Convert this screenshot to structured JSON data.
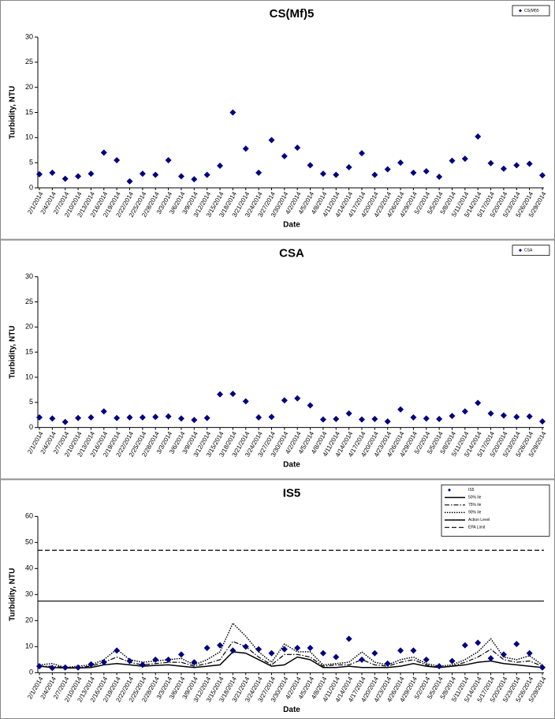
{
  "chart_data": [
    {
      "type": "scatter",
      "title": "CS(Mf)5",
      "xlabel": "Date",
      "ylabel": "Turbidity, NTU",
      "legend": "upper right",
      "categories": [
        "2/1/2014",
        "2/4/2014",
        "2/7/2014",
        "2/10/2014",
        "2/13/2014",
        "2/16/2014",
        "2/19/2014",
        "2/22/2014",
        "2/25/2014",
        "2/28/2014",
        "3/3/2014",
        "3/6/2014",
        "3/9/2014",
        "3/12/2014",
        "3/15/2014",
        "3/18/2014",
        "3/21/2014",
        "3/24/2014",
        "3/27/2014",
        "3/30/2014",
        "4/2/2014",
        "4/5/2014",
        "4/8/2014",
        "4/11/2014",
        "4/14/2014",
        "4/17/2014",
        "4/20/2014",
        "4/23/2014",
        "4/26/2014",
        "4/29/2014",
        "5/2/2014",
        "5/5/2014",
        "5/8/2014",
        "5/11/2014",
        "5/14/2014",
        "5/17/2014",
        "5/20/2014",
        "5/23/2014",
        "5/26/2014",
        "5/29/2014"
      ],
      "ylim": [
        0,
        30
      ],
      "yticks": [
        0,
        5,
        10,
        15,
        20,
        25,
        30
      ],
      "series": [
        {
          "name": "CS(Mf)5",
          "color": "#000080",
          "style": "marker",
          "values": [
            2.7,
            3.0,
            1.8,
            2.3,
            2.8,
            7.0,
            5.5,
            1.3,
            2.8,
            2.6,
            5.5,
            2.3,
            1.7,
            2.6,
            4.4,
            15,
            7.8,
            3,
            9.5,
            6.3,
            8,
            4.5,
            2.8,
            2.6,
            4.1,
            6.9,
            2.6,
            3.7,
            5,
            3,
            3.3,
            2.2,
            5.4,
            5.8,
            10.2,
            4.9,
            3.8,
            4.5,
            4.8,
            2.5
          ]
        }
      ]
    },
    {
      "type": "scatter",
      "title": "CSA",
      "xlabel": "Date",
      "ylabel": "Turbidity, NTU",
      "legend": "upper right",
      "categories": [
        "2/1/2014",
        "2/4/2014",
        "2/7/2014",
        "2/10/2014",
        "2/13/2014",
        "2/16/2014",
        "2/19/2014",
        "2/22/2014",
        "2/25/2014",
        "2/28/2014",
        "3/3/2014",
        "3/6/2014",
        "3/9/2014",
        "3/12/2014",
        "3/15/2014",
        "3/18/2014",
        "3/21/2014",
        "3/24/2014",
        "3/27/2014",
        "3/30/2014",
        "4/2/2014",
        "4/5/2014",
        "4/8/2014",
        "4/11/2014",
        "4/14/2014",
        "4/17/2014",
        "4/20/2014",
        "4/23/2014",
        "4/26/2014",
        "4/29/2014",
        "5/2/2014",
        "5/5/2014",
        "5/8/2014",
        "5/11/2014",
        "5/14/2014",
        "5/17/2014",
        "5/20/2014",
        "5/23/2014",
        "5/26/2014",
        "5/29/2014"
      ],
      "ylim": [
        0,
        30
      ],
      "yticks": [
        0,
        5,
        10,
        15,
        20,
        25,
        30
      ],
      "series": [
        {
          "name": "CSA",
          "color": "#000080",
          "style": "marker",
          "values": [
            2.0,
            1.8,
            1.1,
            1.9,
            2.0,
            3.2,
            1.9,
            2.0,
            2.0,
            2.1,
            2.2,
            1.8,
            1.5,
            1.9,
            6.6,
            6.7,
            5.2,
            2.0,
            2.1,
            5.4,
            5.8,
            4.4,
            1.6,
            1.7,
            2.8,
            1.6,
            1.7,
            1.2,
            3.6,
            2.0,
            1.8,
            1.7,
            2.3,
            3.2,
            4.9,
            2.8,
            2.4,
            2.1,
            2.2,
            1.2
          ]
        }
      ]
    },
    {
      "type": "line",
      "title": "IS5",
      "xlabel": "Date",
      "ylabel": "Turbidity, NTU",
      "legend": "upper right",
      "categories": [
        "2/1/2014",
        "2/4/2014",
        "2/7/2014",
        "2/10/2014",
        "2/13/2014",
        "2/16/2014",
        "2/19/2014",
        "2/22/2014",
        "2/25/2014",
        "2/28/2014",
        "3/3/2014",
        "3/6/2014",
        "3/9/2014",
        "3/12/2014",
        "3/15/2014",
        "3/18/2014",
        "3/21/2014",
        "3/24/2014",
        "3/27/2014",
        "3/30/2014",
        "4/2/2014",
        "4/5/2014",
        "4/8/2014",
        "4/11/2014",
        "4/14/2014",
        "4/17/2014",
        "4/20/2014",
        "4/23/2014",
        "4/26/2014",
        "4/29/2014",
        "5/2/2014",
        "5/5/2014",
        "5/8/2014",
        "5/11/2014",
        "5/14/2014",
        "5/17/2014",
        "5/20/2014",
        "5/23/2014",
        "5/26/2014",
        "5/29/2014"
      ],
      "ylim": [
        0,
        60
      ],
      "yticks": [
        0,
        10,
        20,
        30,
        40,
        50,
        60
      ],
      "series": [
        {
          "name": "IS5",
          "color": "#000080",
          "style": "marker",
          "values": [
            2.5,
            1.8,
            2,
            2,
            3.2,
            4,
            8.5,
            4.5,
            3,
            5,
            5,
            7,
            4,
            9.5,
            10.5,
            8.5,
            10,
            9,
            7.5,
            9,
            9.5,
            9.5,
            7.5,
            6,
            13,
            5,
            7.5,
            3.5,
            8.5,
            8.5,
            5,
            2.5,
            4.5,
            10.5,
            11.5,
            5.5,
            7,
            11,
            7.5,
            2
          ]
        },
        {
          "name": "50% ile",
          "color": "#000000",
          "style": "solid",
          "values": [
            2.5,
            2,
            1.8,
            1.8,
            2,
            3,
            3.5,
            3,
            2.5,
            2.8,
            3,
            2.5,
            2,
            2.5,
            3,
            8,
            7.5,
            5,
            2.5,
            3,
            6,
            5,
            2,
            2,
            2.5,
            2,
            2,
            2,
            2.5,
            3.5,
            2.5,
            2,
            2.5,
            3,
            4,
            4.5,
            3.5,
            3,
            2.5,
            2
          ]
        },
        {
          "name": "75% ile",
          "color": "#000000",
          "style": "dashdot",
          "values": [
            2.5,
            2.5,
            2,
            2,
            2.5,
            4,
            6,
            4,
            3,
            3.5,
            4,
            4,
            2.5,
            3.5,
            5,
            12,
            10,
            6,
            3,
            7,
            7,
            6,
            2.5,
            3,
            3,
            5,
            3,
            2.5,
            4,
            5,
            3,
            2,
            2.5,
            4,
            6,
            9,
            5,
            4,
            4.5,
            2.5
          ]
        },
        {
          "name": "90% ile",
          "color": "#000000",
          "style": "dotted",
          "values": [
            3,
            3.5,
            2,
            2.5,
            3,
            5,
            9,
            5,
            4,
            4.5,
            5,
            5.5,
            3,
            5,
            8,
            19,
            14,
            8,
            4,
            11,
            8,
            8,
            3,
            3.5,
            4,
            8,
            4,
            3,
            5,
            6,
            3.5,
            2.5,
            3,
            5,
            8,
            13,
            6,
            5,
            6.5,
            3
          ]
        }
      ],
      "hlines": [
        {
          "name": "Action Level",
          "value": 27.5,
          "style": "solid"
        },
        {
          "name": "EPA Limit",
          "value": 47,
          "style": "dashed"
        }
      ]
    }
  ]
}
